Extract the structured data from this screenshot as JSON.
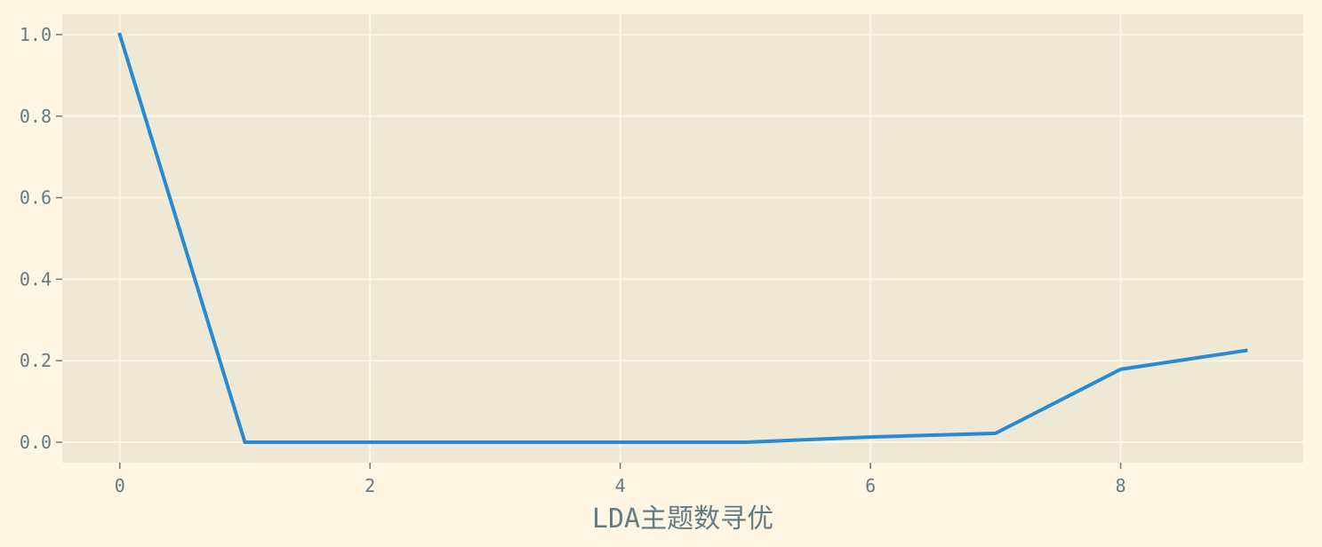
{
  "chart_data": {
    "type": "line",
    "title": "",
    "xlabel": "LDA主题数寻优",
    "ylabel": "",
    "x": [
      0,
      1,
      2,
      3,
      4,
      5,
      6,
      7,
      8,
      9
    ],
    "series": [
      {
        "values": [
          1.0,
          0.0,
          0.0,
          0.0,
          0.0,
          0.0,
          0.013,
          0.022,
          0.179,
          0.225
        ]
      }
    ],
    "xlim": [
      -0.46,
      9.46
    ],
    "ylim": [
      -0.05,
      1.05
    ],
    "xticks": [
      0,
      2,
      4,
      6,
      8
    ],
    "yticks": [
      0.0,
      0.2,
      0.4,
      0.6,
      0.8,
      1.0
    ],
    "xtick_labels": [
      "0",
      "2",
      "4",
      "6",
      "8"
    ],
    "ytick_labels": [
      "0.0",
      "0.2",
      "0.4",
      "0.6",
      "0.8",
      "1.0"
    ],
    "grid": true,
    "legend": "none"
  },
  "colors": {
    "page_background": "#fdf6e3",
    "plot_background": "#eee8d5",
    "grid": "#fdf6e3",
    "line": "#268bd2",
    "text": "#657b83"
  }
}
